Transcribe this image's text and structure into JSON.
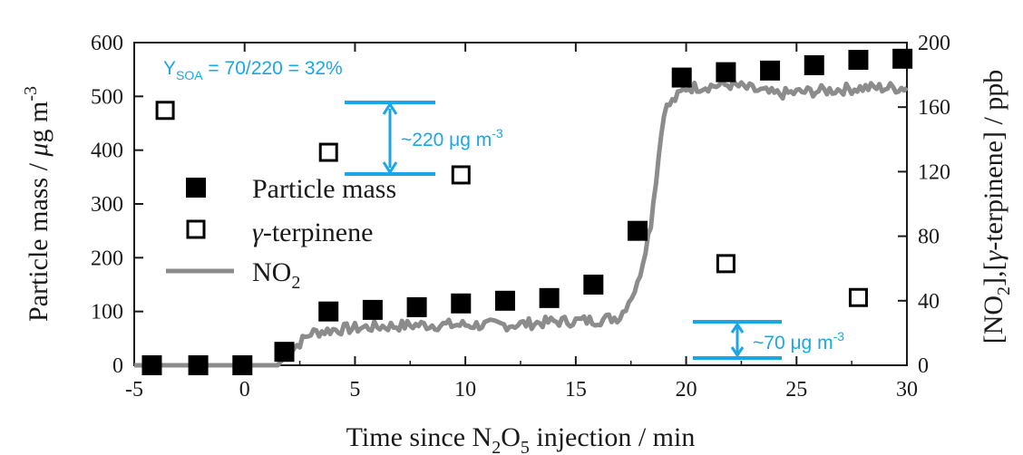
{
  "chart_data": {
    "type": "scatter",
    "title": "",
    "xlabel": {
      "main": "Time since N",
      "sub1": "2",
      "mid": "O",
      "sub2": "5",
      "tail": " injection / min"
    },
    "ylabel_left": {
      "main": "Particle mass / ",
      "mu": "μ",
      "tail": "g m",
      "sup": "-3"
    },
    "ylabel_right": {
      "a": "[NO",
      "sub": "2",
      "b": "],[",
      "gamma": "γ",
      "c": "-terpinene] / ppb"
    },
    "xlim": [
      -5,
      30
    ],
    "ylim_left": [
      0,
      600
    ],
    "ylim_right": [
      0,
      200
    ],
    "x_ticks": [
      "-5",
      "0",
      "5",
      "10",
      "15",
      "20",
      "25",
      "30"
    ],
    "y_left_ticks": [
      "0",
      "100",
      "200",
      "300",
      "400",
      "500",
      "600"
    ],
    "y_right_ticks": [
      "0",
      "40",
      "80",
      "120",
      "160",
      "200"
    ],
    "legend": {
      "position": "left-middle",
      "particle_mass": "Particle mass",
      "terpinene": {
        "gamma": "γ",
        "rest": "-terpinene"
      },
      "no2": {
        "main": "NO",
        "sub": "2"
      }
    },
    "series": [
      {
        "name": "Particle mass",
        "axis": "left",
        "marker": "filled-square",
        "color": "#000000",
        "x": [
          -4.2,
          -2.1,
          -0.1,
          1.8,
          3.8,
          5.8,
          7.8,
          9.8,
          11.8,
          13.8,
          15.8,
          17.8,
          19.8,
          21.8,
          23.8,
          25.8,
          27.8,
          29.8
        ],
        "y": [
          0,
          0,
          0,
          25,
          100,
          103,
          108,
          115,
          120,
          125,
          150,
          250,
          535,
          545,
          548,
          558,
          568,
          570
        ]
      },
      {
        "name": "γ-terpinene",
        "axis": "right",
        "marker": "open-square",
        "color": "#000000",
        "x": [
          -3.6,
          3.8,
          9.8,
          21.8,
          27.8
        ],
        "y": [
          158,
          132,
          118,
          63,
          42
        ]
      },
      {
        "name": "NO2",
        "axis": "right",
        "marker": "line",
        "color": "#8c8c8c",
        "x": [
          -5,
          1.5,
          2,
          3,
          4,
          6,
          8,
          10,
          12,
          14,
          16,
          17,
          17.8,
          18.4,
          19,
          20,
          22,
          24,
          26,
          28,
          30
        ],
        "y": [
          0,
          0,
          8,
          20,
          22,
          24,
          25,
          25,
          25,
          27,
          28,
          30,
          50,
          88,
          158,
          172,
          174,
          168,
          170,
          172,
          172
        ]
      }
    ],
    "annotations": {
      "yield": {
        "y": "Y",
        "sub": "SOA",
        "rest": " = 70/220 = 32%"
      },
      "big_arrow": {
        "text": "~220 μg m",
        "sup": "-3",
        "from": 355,
        "to": 490,
        "x": 6.7
      },
      "small_arrow": {
        "text": "~70 μg m",
        "sup": "-3",
        "from": 15,
        "to": 85,
        "x": 22.8
      },
      "color": "#1ca6e6"
    }
  }
}
